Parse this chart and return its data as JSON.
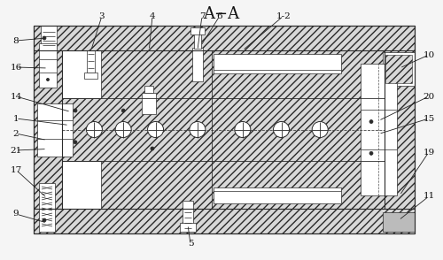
{
  "title": "A−A",
  "bg_color": "#f5f5f5",
  "line_color": "#2a2a2a",
  "fig_width": 5.0,
  "fig_height": 2.94,
  "dpi": 100,
  "OL": 0.075,
  "OR": 0.925,
  "OB": 0.1,
  "OT": 0.885,
  "TBH": 0.095,
  "BBH": 0.095,
  "LSW": 0.06,
  "RSW": 0.065,
  "hatch_fc": "#d8d8d8",
  "white": "#ffffff"
}
